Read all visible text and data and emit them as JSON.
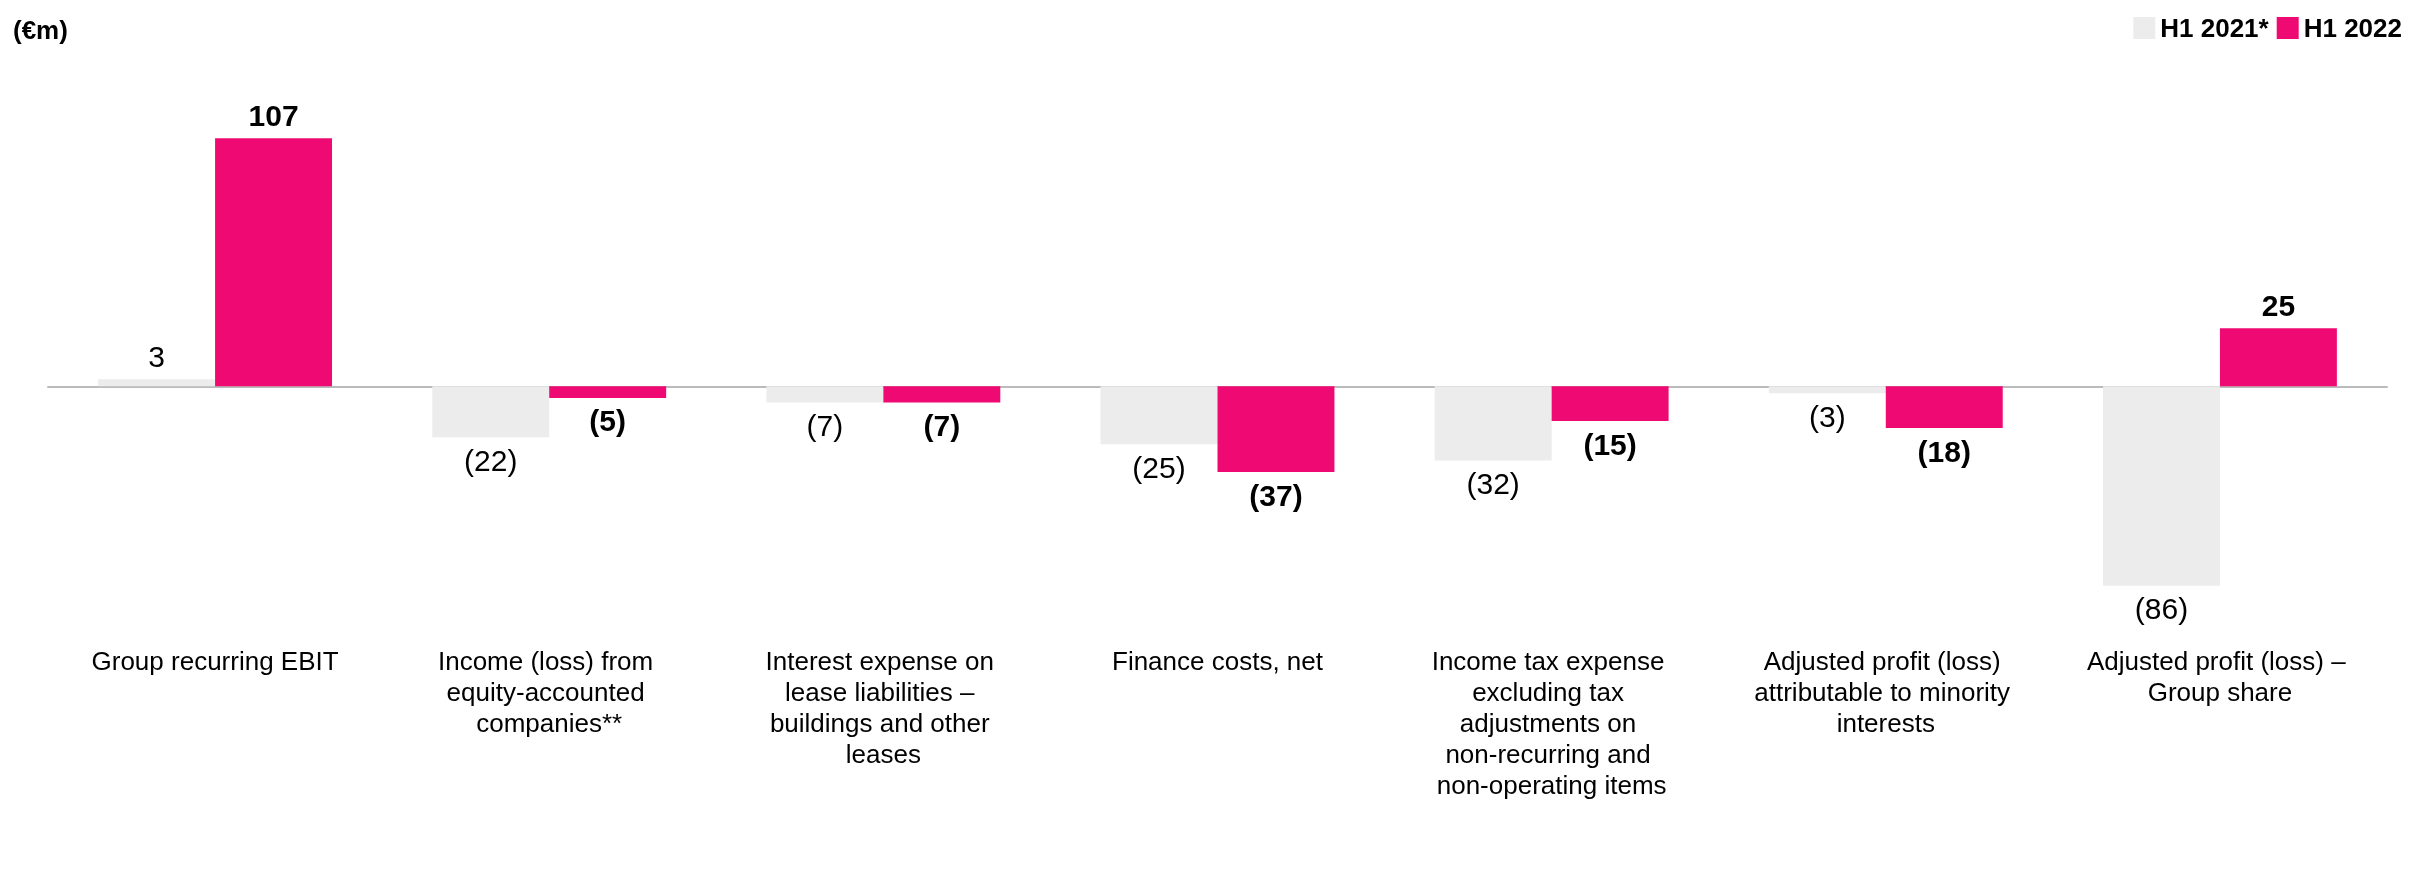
{
  "chart_data": {
    "type": "bar",
    "ylabel": "(€m)",
    "categories": [
      "Group recurring EBIT",
      "Income (loss) from equity-accounted companies**",
      "Interest expense on lease liabilities – buildings and other leases",
      "Finance costs, net",
      "Income tax expense excluding tax adjustments on non-recurring and non-operating items",
      "Adjusted profit (loss) attributable to minority interests",
      "Adjusted profit (loss) – Group share"
    ],
    "series": [
      {
        "name": "H1 2021*",
        "color": "#ececec",
        "values": [
          3,
          -22,
          -7,
          -25,
          -32,
          -3,
          -86
        ],
        "value_labels": [
          "3",
          "(22)",
          "(7)",
          "(25)",
          "(32)",
          "(3)",
          "(86)"
        ]
      },
      {
        "name": "H1 2022",
        "color": "#ee0a72",
        "values": [
          107,
          -5,
          -7,
          -37,
          -15,
          -18,
          25
        ],
        "value_labels": [
          "107",
          "(5)",
          "(7)",
          "(37)",
          "(15)",
          "(18)",
          "25"
        ]
      }
    ],
    "legend": "top right",
    "grid": false
  }
}
